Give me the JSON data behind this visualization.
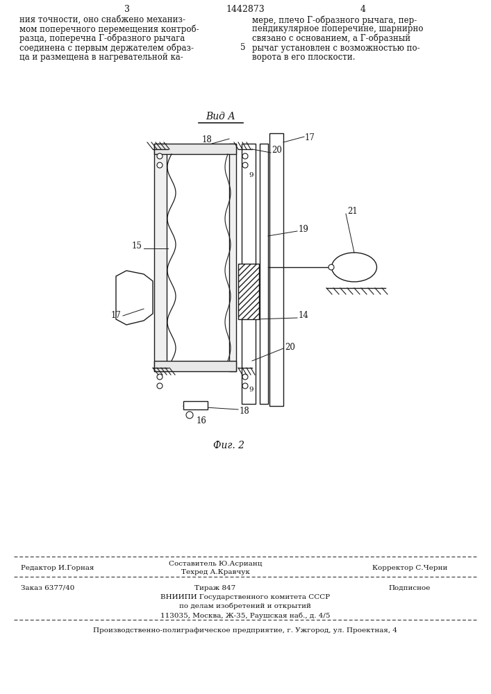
{
  "page_number_left": "3",
  "page_number_center": "1442873",
  "page_number_right": "4",
  "text_left": "ния точности, оно снабжено механиз-\nмом поперечного перемещения контроб-\nразца, поперечна Г-образного рычага\nсоединена с первым держателем образ-\nца и размещена в нагревательной ка-",
  "text_right": "мере, плечо Г-образного рычага, пер-\nпендикулярное поперечине, шарнирно\nсвязано с основанием, а Г-образный\nрычаг установлен с возможностью по-\nворота в его плоскости.",
  "line_number": "5",
  "view_label": "Вид А",
  "fig_label": "Фиг. 2",
  "footer_editor": "Редактор И.Горная",
  "footer_comp_top": "Составитель Ю.Асрианц",
  "footer_comp_bot": "Техред А.Кравчук",
  "footer_corr": "Корректор С.Черни",
  "footer_order": "Заказ 6377/40",
  "footer_circ": "Тираж 847",
  "footer_sign": "Подписное",
  "footer_org1": "ВНИИПИ Государственного комитета СССР",
  "footer_org2": "по делам изобретений и открытий",
  "footer_org3": "113035, Москва, Ж-35, Раушская наб., д. 4/5",
  "footer_prod": "Производственно-полиграфическое предприятие, г. Ужгород, ул. Проектная, 4",
  "bg_color": "#ffffff",
  "line_color": "#1a1a1a",
  "text_color": "#111111"
}
